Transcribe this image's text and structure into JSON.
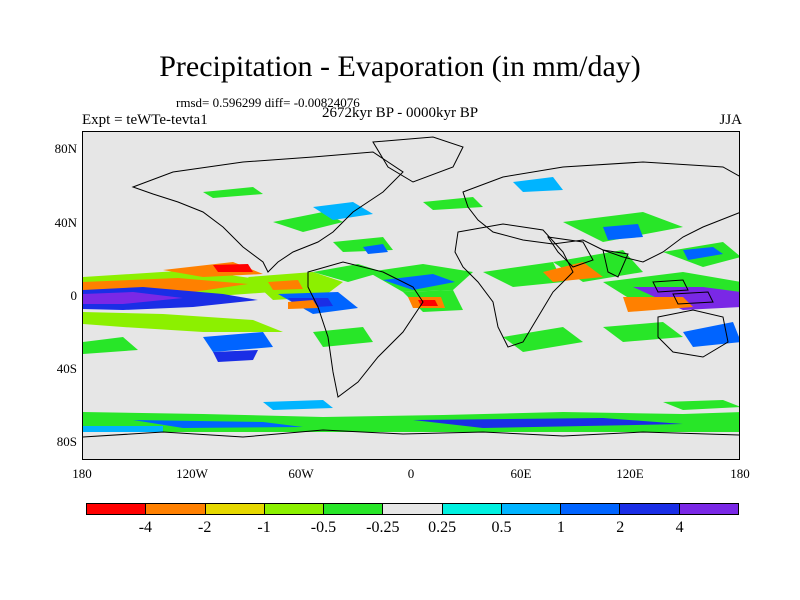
{
  "title": "Precipitation - Evaporation (in mm/day)",
  "stats": "rmsd= 0.596299 diff= -0.00824076",
  "period": "2672kyr BP - 0000kyr BP",
  "experiment": "Expt = teWTe-tevta1",
  "season": "JJA",
  "axes": {
    "y_labels": [
      "80N",
      "40N",
      "0",
      "40S",
      "80S"
    ],
    "x_labels": [
      "180",
      "120W",
      "60W",
      "0",
      "60E",
      "120E",
      "180"
    ]
  },
  "colorbar": {
    "colors": [
      "#ff0000",
      "#ff8000",
      "#e6d800",
      "#8cf000",
      "#28e628",
      "#e6e6e6",
      "#00f0e0",
      "#00b4ff",
      "#0064ff",
      "#1a2ee6",
      "#7a28e6"
    ],
    "labels": [
      "-4",
      "-2",
      "-1",
      "-0.5",
      "-0.25",
      "0.25",
      "0.5",
      "1",
      "2",
      "4"
    ]
  },
  "map_data": {
    "projection": "cylindrical equidistant",
    "lon_range": [
      -180,
      180
    ],
    "lat_range": [
      -90,
      90
    ],
    "field": "P-E anomaly (mm/day)"
  }
}
